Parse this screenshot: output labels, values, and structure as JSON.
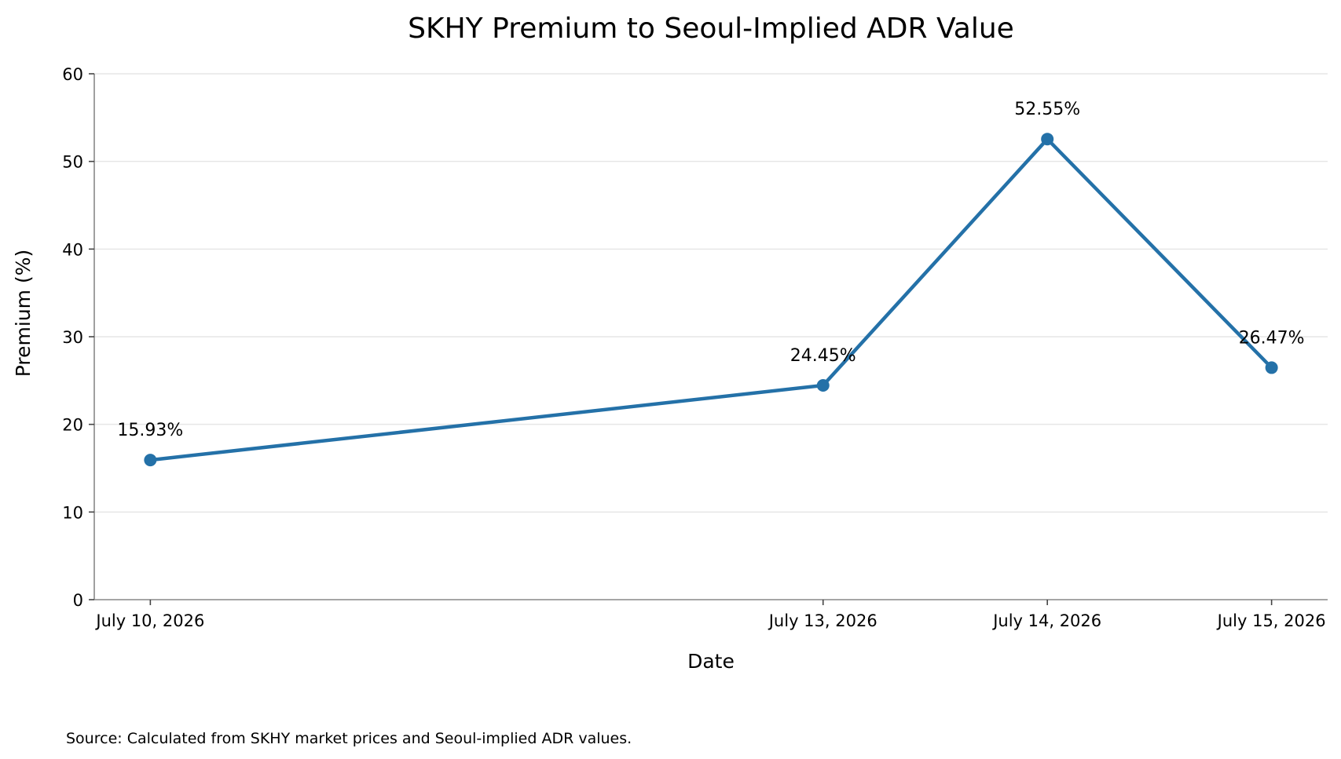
{
  "chart_data": {
    "type": "line",
    "title": "SKHY Premium to Seoul-Implied ADR Value",
    "xlabel": "Date",
    "ylabel": "Premium (%)",
    "x": [
      "2026-07-10",
      "2026-07-13",
      "2026-07-14",
      "2026-07-15"
    ],
    "x_tick_labels": [
      "July 10, 2026",
      "July 13, 2026",
      "July 14, 2026",
      "July 15, 2026"
    ],
    "series": [
      {
        "values": [
          15.93,
          24.45,
          52.55,
          26.47
        ],
        "data_labels": [
          "15.93%",
          "24.45%",
          "52.55%",
          "26.47%"
        ],
        "color": "#2471a8"
      }
    ],
    "ylim": [
      0,
      60
    ],
    "y_ticks": [
      0,
      10,
      20,
      30,
      40,
      50,
      60
    ],
    "grid": "horizontal",
    "source": "Source: Calculated from SKHY market prices and Seoul-implied ADR values."
  },
  "colors": {
    "line": "#2471a8",
    "grid": "#e6e6e6",
    "axis": "#888888"
  }
}
